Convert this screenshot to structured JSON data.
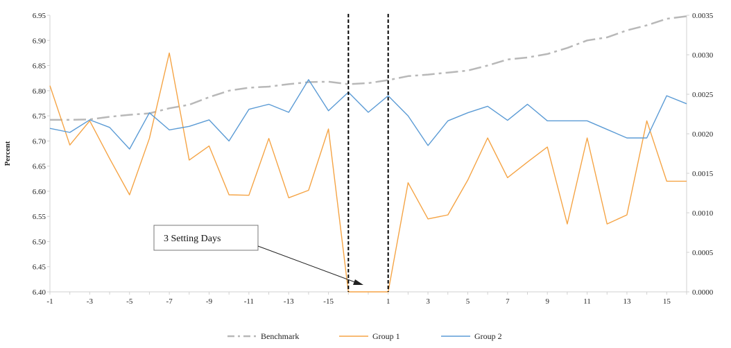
{
  "chart_data": {
    "type": "line",
    "ylabel": "Percent",
    "x_ticks": [
      "-1",
      "-3",
      "-5",
      "-7",
      "-9",
      "-11",
      "-13",
      "-15",
      "1",
      "3",
      "5",
      "7",
      "9",
      "11",
      "13",
      "15"
    ],
    "x_tick_positions": [
      0,
      2,
      4,
      6,
      8,
      10,
      12,
      14,
      17,
      19,
      21,
      23,
      25,
      27,
      29,
      31
    ],
    "ylim_left": [
      6.4,
      6.95
    ],
    "yticks_left": [
      "6.40",
      "6.45",
      "6.50",
      "6.55",
      "6.60",
      "6.65",
      "6.70",
      "6.75",
      "6.80",
      "6.85",
      "6.90",
      "6.95"
    ],
    "ylim_right": [
      0,
      0.0035
    ],
    "yticks_right": [
      "0.0000",
      "0.0005",
      "0.0010",
      "0.0015",
      "0.0020",
      "0.0025",
      "0.0030",
      "0.0035"
    ],
    "grid": false,
    "legend_position": "bottom",
    "series": [
      {
        "name": "Benchmark",
        "axis": "left",
        "color": "#b8b8b8",
        "style": "dash-dot",
        "values": [
          6.742,
          6.742,
          6.743,
          6.748,
          6.752,
          6.755,
          6.765,
          6.772,
          6.787,
          6.8,
          6.806,
          6.808,
          6.813,
          6.817,
          6.818,
          6.813,
          6.815,
          6.821,
          6.829,
          6.832,
          6.836,
          6.84,
          6.85,
          6.862,
          6.866,
          6.873,
          6.885,
          6.9,
          6.906,
          6.92,
          6.93,
          6.943,
          6.948
        ]
      },
      {
        "name": "Group 1",
        "axis": "left",
        "color": "#f5a445",
        "style": "solid",
        "values": [
          6.81,
          6.692,
          6.74,
          6.665,
          6.593,
          6.705,
          6.875,
          6.662,
          6.69,
          6.593,
          6.592,
          6.705,
          6.587,
          6.602,
          6.724,
          6.4,
          6.4,
          6.4,
          6.617,
          6.545,
          6.553,
          6.622,
          6.706,
          6.627,
          6.658,
          6.688,
          6.535,
          6.706,
          6.535,
          6.553,
          6.74,
          6.62,
          6.62
        ]
      },
      {
        "name": "Group 2",
        "axis": "left",
        "color": "#5b9bd5",
        "style": "solid",
        "values": [
          6.725,
          6.717,
          6.742,
          6.727,
          6.684,
          6.756,
          6.722,
          6.729,
          6.742,
          6.7,
          6.763,
          6.773,
          6.757,
          6.822,
          6.76,
          6.797,
          6.757,
          6.79,
          6.75,
          6.691,
          6.74,
          6.756,
          6.769,
          6.741,
          6.773,
          6.74,
          6.74,
          6.74,
          6.723,
          6.706,
          6.706,
          6.79,
          6.774
        ]
      }
    ],
    "event_window": [
      15,
      17
    ],
    "annotation": "3 Setting Days"
  }
}
